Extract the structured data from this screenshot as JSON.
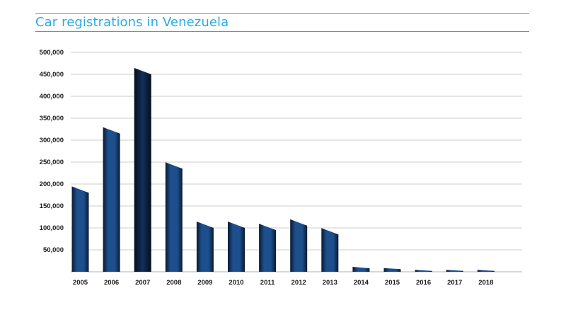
{
  "header": {
    "title": "Car registrations in Venezuela"
  },
  "colors": {
    "accent": "#29abe2",
    "bar_dark": "#0a1a33",
    "bar_mid": "#1d4f8c",
    "grid": "#bbbbbb"
  },
  "chart_data": {
    "type": "bar",
    "title": "Car registrations in Venezuela",
    "xlabel": "",
    "ylabel": "",
    "categories": [
      "2005",
      "2006",
      "2007",
      "2008",
      "2009",
      "2010",
      "2011",
      "2012",
      "2013",
      "2014",
      "2015",
      "2016",
      "2017",
      "2018"
    ],
    "values": [
      180000,
      315000,
      450000,
      235000,
      100000,
      100000,
      95000,
      105000,
      85000,
      8000,
      6000,
      2000,
      2000,
      2000
    ],
    "ylim": [
      0,
      500000
    ],
    "yticks": [
      50000,
      100000,
      150000,
      200000,
      250000,
      300000,
      350000,
      400000,
      450000,
      500000
    ],
    "ytick_labels": [
      "50,000",
      "100,000",
      "150,000",
      "200,000",
      "250,000",
      "300,000",
      "350,000",
      "400,000",
      "450,000",
      "500,000"
    ],
    "grid": true,
    "legend": "none"
  }
}
